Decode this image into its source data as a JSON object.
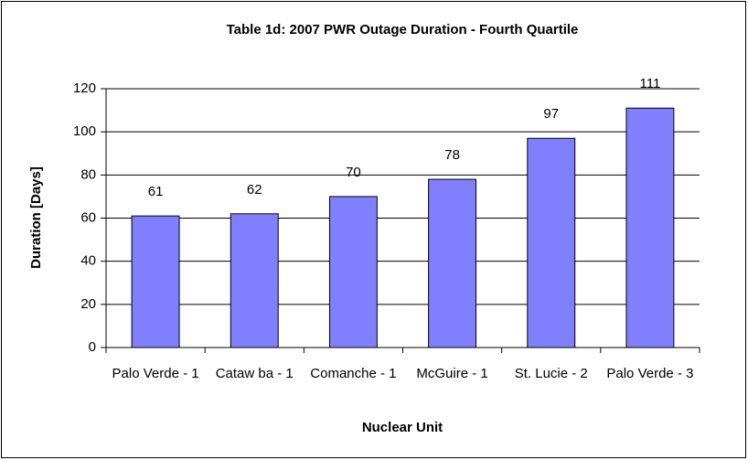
{
  "chart_data": {
    "type": "bar",
    "title": "Table 1d: 2007 PWR Outage Duration - Fourth Quartile",
    "x_label": "Nuclear Unit",
    "y_label": "Duration [Days]",
    "categories": [
      "Palo Verde - 1",
      "Cataw ba - 1",
      "Comanche - 1",
      "McGuire - 1",
      "St. Lucie - 2",
      "Palo Verde - 3"
    ],
    "values": [
      61,
      62,
      70,
      78,
      97,
      111
    ],
    "color": "#8080ff",
    "ylim": [
      0,
      120
    ],
    "yticks": [
      0,
      20,
      40,
      60,
      80,
      100,
      120
    ],
    "grid": true
  }
}
